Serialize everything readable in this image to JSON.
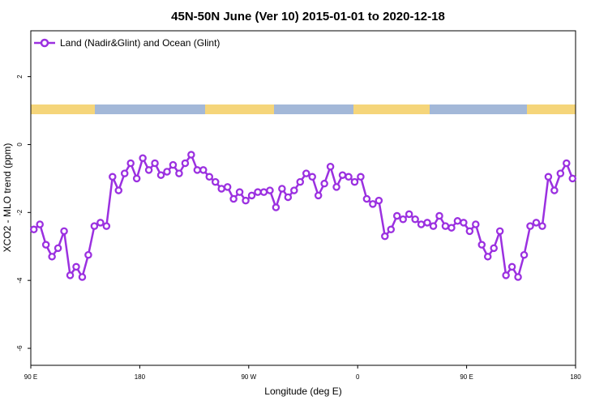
{
  "chart_data": {
    "type": "line",
    "title": "45N-50N June (Ver 10)   2015-01-01 to 2020-12-18",
    "xlabel": "Longitude (deg E)",
    "ylabel": "XCO2 - MLO trend (ppm)",
    "x_tick_labels": [
      "90 E",
      "180",
      "90 W",
      "0",
      "90 E",
      "180"
    ],
    "x_ticks": [
      90,
      180,
      270,
      360,
      450,
      540
    ],
    "y_ticks": [
      -6,
      -4,
      -2,
      0,
      2
    ],
    "xlim": [
      90,
      540
    ],
    "ylim": [
      -6.5,
      3.35
    ],
    "legend": {
      "position": "top-left",
      "entries": [
        "Land (Nadir&Glint) and Ocean (Glint)"
      ]
    },
    "colors": {
      "series": "#9b30e0",
      "land": "#f5d57a",
      "ocean": "#a3b8d8"
    },
    "series": [
      {
        "name": "Land (Nadir&Glint) and Ocean (Glint)",
        "x": [
          92.5,
          97.5,
          102.5,
          107.5,
          112.5,
          117.5,
          122.5,
          127.5,
          132.5,
          137.5,
          142.5,
          147.5,
          152.5,
          157.5,
          162.5,
          167.5,
          172.5,
          177.5,
          182.5,
          187.5,
          192.5,
          197.5,
          202.5,
          207.5,
          212.5,
          217.5,
          222.5,
          227.5,
          232.5,
          237.5,
          242.5,
          247.5,
          252.5,
          257.5,
          262.5,
          267.5,
          272.5,
          277.5,
          282.5,
          287.5,
          292.5,
          297.5,
          302.5,
          307.5,
          312.5,
          317.5,
          322.5,
          327.5,
          332.5,
          337.5,
          342.5,
          347.5,
          352.5,
          357.5,
          362.5,
          367.5,
          372.5,
          377.5,
          382.5,
          387.5,
          392.5,
          397.5,
          402.5,
          407.5,
          412.5,
          417.5,
          422.5,
          427.5,
          432.5,
          437.5,
          442.5,
          447.5,
          452.5,
          457.5,
          462.5,
          467.5,
          472.5,
          477.5,
          482.5,
          487.5,
          492.5,
          497.5,
          502.5,
          507.5,
          512.5,
          517.5,
          522.5,
          527.5,
          532.5,
          537.5
        ],
        "y": [
          -2.5,
          -2.35,
          -2.95,
          -3.3,
          -3.05,
          -2.55,
          -3.85,
          -3.6,
          -3.9,
          -3.25,
          -2.4,
          -2.3,
          -2.4,
          -0.95,
          -1.35,
          -0.85,
          -0.55,
          -1.0,
          -0.4,
          -0.75,
          -0.55,
          -0.9,
          -0.8,
          -0.6,
          -0.85,
          -0.55,
          -0.3,
          -0.75,
          -0.75,
          -0.95,
          -1.1,
          -1.3,
          -1.25,
          -1.6,
          -1.4,
          -1.65,
          -1.5,
          -1.4,
          -1.4,
          -1.35,
          -1.85,
          -1.3,
          -1.55,
          -1.35,
          -1.1,
          -0.85,
          -0.95,
          -1.5,
          -1.15,
          -0.65,
          -1.25,
          -0.9,
          -0.95,
          -1.1,
          -0.95,
          -1.6,
          -1.75,
          -1.65,
          -2.7,
          -2.5,
          -2.1,
          -2.2,
          -2.05,
          -2.2,
          -2.35,
          -2.3,
          -2.4,
          -2.1,
          -2.4,
          -2.45,
          -2.25,
          -2.3,
          -2.55,
          -2.35,
          -2.95,
          -3.3,
          -3.05,
          -2.55,
          -3.85,
          -3.6,
          -3.9,
          -3.25,
          -2.4,
          -2.3,
          -2.4,
          -0.95,
          -1.35,
          -0.85,
          -0.55,
          -1.0
        ]
      }
    ]
  }
}
